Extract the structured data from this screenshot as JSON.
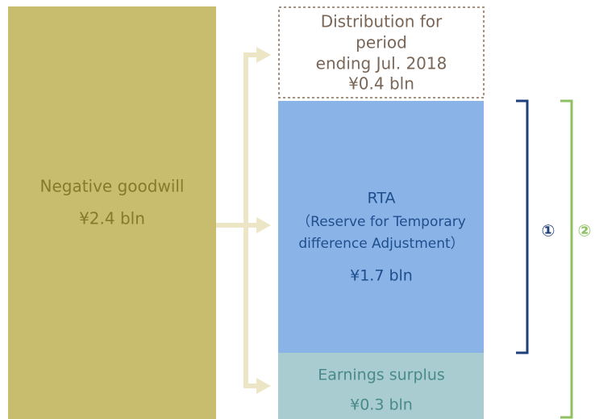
{
  "source": {
    "lines": [
      "Negative goodwill",
      "¥2.4 bln"
    ]
  },
  "targets": [
    {
      "lines": [
        "Distribution for",
        "period",
        "ending Jul. 2018",
        "¥0.4 bln"
      ]
    },
    {
      "lines": [
        "RTA",
        "（Reserve for Temporary",
        "difference Adjustment）",
        "¥1.7 bln"
      ]
    },
    {
      "lines": [
        "Earnings surplus",
        "¥0.3 bln"
      ]
    }
  ],
  "brackets": [
    {
      "label": "①"
    },
    {
      "label": "②"
    }
  ]
}
